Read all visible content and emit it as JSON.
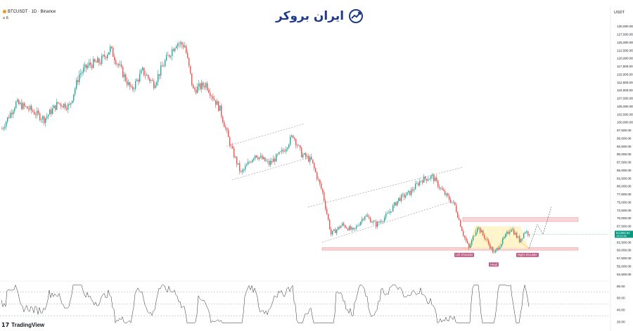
{
  "header": {
    "symbol_line": "BTCUSDT · 1D · Binance",
    "sub_line": "≡ 6",
    "currency": "USDT"
  },
  "logo": {
    "text": "ایران بروکر",
    "icon": "chart-up-icon"
  },
  "footer": {
    "brand": "TradingView"
  },
  "price_axis": {
    "ticks": [
      "130,000.00",
      "127,500.00",
      "125,000.00",
      "122,500.00",
      "120,000.00",
      "117,500.00",
      "115,000.00",
      "112,500.00",
      "110,000.00",
      "107,500.00",
      "105,000.00",
      "102,500.00",
      "100,000.00",
      "97,500.00",
      "95,000.00",
      "92,500.00",
      "90,000.00",
      "87,500.00",
      "85,000.00",
      "82,500.00",
      "80,000.00",
      "77,500.00",
      "75,000.00",
      "72,500.00",
      "70,000.00",
      "67,500.00",
      "62,500.00",
      "60,000.00",
      "57,500.00",
      "55,000.00",
      "52,500.00"
    ],
    "current_price": "64,984.84",
    "current_price_sub": "15:02:46"
  },
  "rsi_axis": {
    "ticks": [
      "80.00",
      "60.00",
      "40.00",
      "20.00"
    ]
  },
  "annotations": {
    "left_shoulder": "Left Shoulder",
    "head": "Head",
    "right_shoulder": "Right Shoulder"
  },
  "colors": {
    "up": "#26a69a",
    "down": "#ef5350",
    "zone": "#f7c5c8",
    "pattern_fill": "#fff3c4",
    "price_tag": "#089981",
    "label_bg": "#b85c83",
    "logo": "#1f3a8a"
  },
  "chart_data": {
    "type": "candlestick",
    "symbol": "BTCUSDT",
    "timeframe": "1D",
    "exchange": "Binance",
    "ylim": [
      51000,
      131000
    ],
    "price_path_key_points": [
      {
        "i": 0,
        "price": 98000
      },
      {
        "i": 10,
        "price": 106000
      },
      {
        "i": 20,
        "price": 104000
      },
      {
        "i": 30,
        "price": 101000
      },
      {
        "i": 40,
        "price": 106000
      },
      {
        "i": 48,
        "price": 105000
      },
      {
        "i": 55,
        "price": 115000
      },
      {
        "i": 62,
        "price": 118000
      },
      {
        "i": 70,
        "price": 119000
      },
      {
        "i": 77,
        "price": 123000
      },
      {
        "i": 84,
        "price": 117000
      },
      {
        "i": 92,
        "price": 110000
      },
      {
        "i": 100,
        "price": 116000
      },
      {
        "i": 108,
        "price": 112000
      },
      {
        "i": 116,
        "price": 119000
      },
      {
        "i": 124,
        "price": 125000
      },
      {
        "i": 130,
        "price": 124000
      },
      {
        "i": 136,
        "price": 110000
      },
      {
        "i": 145,
        "price": 112000
      },
      {
        "i": 155,
        "price": 104000
      },
      {
        "i": 163,
        "price": 92000
      },
      {
        "i": 170,
        "price": 84000
      },
      {
        "i": 180,
        "price": 90000
      },
      {
        "i": 190,
        "price": 87000
      },
      {
        "i": 200,
        "price": 91000
      },
      {
        "i": 207,
        "price": 96000
      },
      {
        "i": 213,
        "price": 90000
      },
      {
        "i": 220,
        "price": 88000
      },
      {
        "i": 228,
        "price": 78000
      },
      {
        "i": 234,
        "price": 65000
      },
      {
        "i": 242,
        "price": 68000
      },
      {
        "i": 250,
        "price": 66000
      },
      {
        "i": 258,
        "price": 71000
      },
      {
        "i": 266,
        "price": 68000
      },
      {
        "i": 274,
        "price": 71000
      },
      {
        "i": 282,
        "price": 76000
      },
      {
        "i": 290,
        "price": 78000
      },
      {
        "i": 298,
        "price": 82000
      },
      {
        "i": 306,
        "price": 83000
      },
      {
        "i": 314,
        "price": 78000
      },
      {
        "i": 322,
        "price": 74000
      },
      {
        "i": 328,
        "price": 65000
      },
      {
        "i": 332,
        "price": 60500
      },
      {
        "i": 338,
        "price": 67500
      },
      {
        "i": 344,
        "price": 63500
      },
      {
        "i": 350,
        "price": 59000
      },
      {
        "i": 356,
        "price": 63000
      },
      {
        "i": 362,
        "price": 67000
      },
      {
        "i": 368,
        "price": 63000
      },
      {
        "i": 372,
        "price": 66000
      },
      {
        "i": 375,
        "price": 64984
      }
    ],
    "zones": [
      {
        "name": "resistance",
        "from": 69000,
        "to": 70200
      },
      {
        "name": "support",
        "from": 60000,
        "to": 60800
      }
    ],
    "pattern": "inverse head and shoulders",
    "rsi": {
      "ylim": [
        15,
        85
      ],
      "levels": [
        70,
        50,
        30
      ]
    }
  }
}
